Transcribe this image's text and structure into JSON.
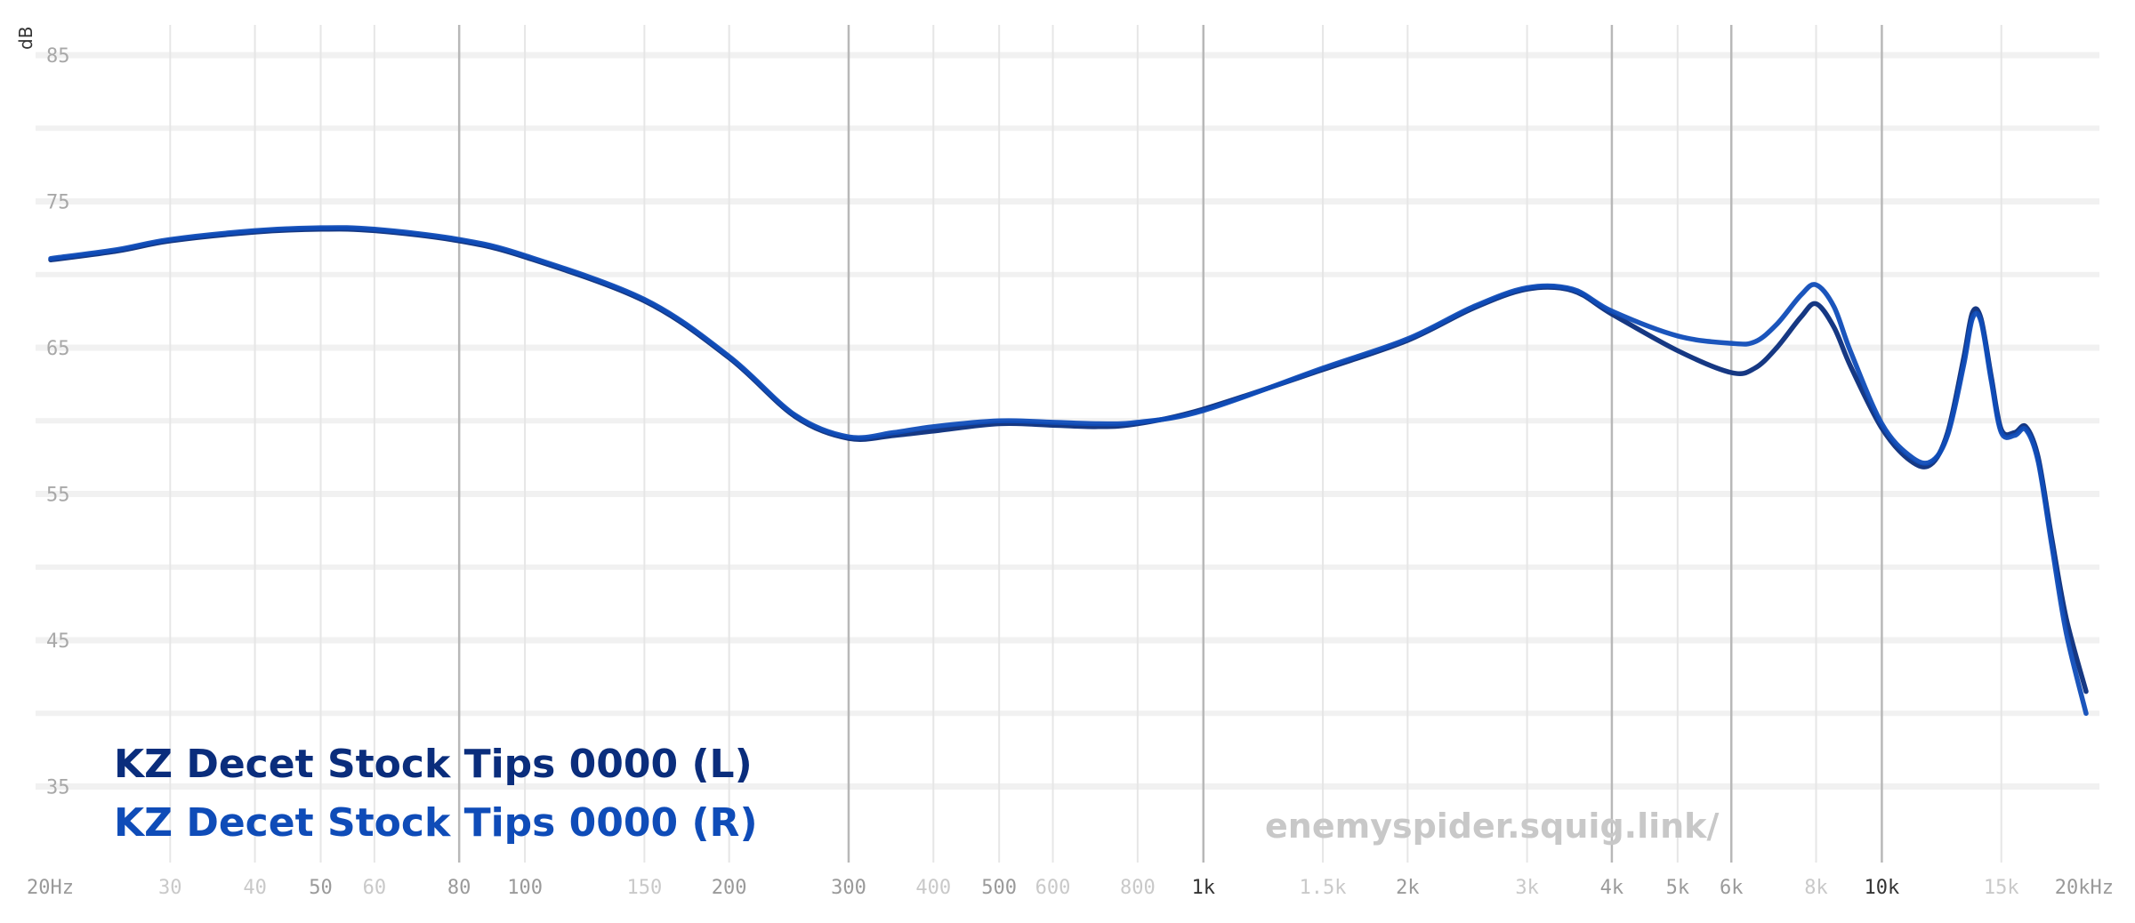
{
  "chart_data": {
    "type": "line",
    "title": "",
    "xlabel": "",
    "ylabel": "dB",
    "xscale": "log",
    "xlim": [
      20,
      20000
    ],
    "ylim": [
      30,
      87
    ],
    "grid": true,
    "legend_position": "bottom-left",
    "y_ticks": [
      {
        "value": 85,
        "label": "85"
      },
      {
        "value": 75,
        "label": "75"
      },
      {
        "value": 65,
        "label": "65"
      },
      {
        "value": 55,
        "label": "55"
      },
      {
        "value": 45,
        "label": "45"
      },
      {
        "value": 35,
        "label": "35"
      }
    ],
    "x_ticks": [
      {
        "value": 20,
        "label": "20Hz",
        "weight": "mid"
      },
      {
        "value": 30,
        "label": "30",
        "weight": "light"
      },
      {
        "value": 40,
        "label": "40",
        "weight": "light"
      },
      {
        "value": 50,
        "label": "50",
        "weight": "mid"
      },
      {
        "value": 60,
        "label": "60",
        "weight": "light"
      },
      {
        "value": 80,
        "label": "80",
        "weight": "mid"
      },
      {
        "value": 100,
        "label": "100",
        "weight": "mid"
      },
      {
        "value": 150,
        "label": "150",
        "weight": "light"
      },
      {
        "value": 200,
        "label": "200",
        "weight": "mid"
      },
      {
        "value": 300,
        "label": "300",
        "weight": "mid"
      },
      {
        "value": 400,
        "label": "400",
        "weight": "light"
      },
      {
        "value": 500,
        "label": "500",
        "weight": "mid"
      },
      {
        "value": 600,
        "label": "600",
        "weight": "light"
      },
      {
        "value": 800,
        "label": "800",
        "weight": "light"
      },
      {
        "value": 1000,
        "label": "1k",
        "weight": "strong"
      },
      {
        "value": 1500,
        "label": "1.5k",
        "weight": "light"
      },
      {
        "value": 2000,
        "label": "2k",
        "weight": "mid"
      },
      {
        "value": 3000,
        "label": "3k",
        "weight": "light"
      },
      {
        "value": 4000,
        "label": "4k",
        "weight": "mid"
      },
      {
        "value": 5000,
        "label": "5k",
        "weight": "mid"
      },
      {
        "value": 6000,
        "label": "6k",
        "weight": "mid"
      },
      {
        "value": 8000,
        "label": "8k",
        "weight": "light"
      },
      {
        "value": 10000,
        "label": "10k",
        "weight": "strong"
      },
      {
        "value": 15000,
        "label": "15k",
        "weight": "light"
      },
      {
        "value": 20000,
        "label": "20kHz",
        "weight": "mid"
      }
    ],
    "dark_gridlines": [
      80,
      300,
      1000,
      4000,
      6000,
      10000
    ],
    "series": [
      {
        "name": "KZ Decet Stock Tips 0000 (L)",
        "color": "#0a2d7c",
        "points": [
          [
            20,
            71
          ],
          [
            25,
            71.6
          ],
          [
            30,
            72.3
          ],
          [
            40,
            72.9
          ],
          [
            50,
            73.1
          ],
          [
            60,
            73.0
          ],
          [
            80,
            72.3
          ],
          [
            100,
            71.2
          ],
          [
            150,
            68.2
          ],
          [
            200,
            64.3
          ],
          [
            250,
            60.3
          ],
          [
            300,
            58.8
          ],
          [
            350,
            59.0
          ],
          [
            400,
            59.3
          ],
          [
            500,
            59.8
          ],
          [
            600,
            59.7
          ],
          [
            700,
            59.6
          ],
          [
            800,
            59.8
          ],
          [
            1000,
            60.8
          ],
          [
            1500,
            63.5
          ],
          [
            2000,
            65.5
          ],
          [
            2500,
            67.7
          ],
          [
            3000,
            69.0
          ],
          [
            3500,
            68.9
          ],
          [
            4000,
            67.3
          ],
          [
            5000,
            64.8
          ],
          [
            6000,
            63.3
          ],
          [
            6500,
            63.6
          ],
          [
            7000,
            65.0
          ],
          [
            7600,
            67.1
          ],
          [
            8000,
            68.0
          ],
          [
            8500,
            66.4
          ],
          [
            9000,
            63.7
          ],
          [
            10000,
            59.5
          ],
          [
            11000,
            57.3
          ],
          [
            11800,
            57.0
          ],
          [
            12500,
            59.2
          ],
          [
            13200,
            64.3
          ],
          [
            13600,
            67.4
          ],
          [
            14000,
            67.0
          ],
          [
            14500,
            63.0
          ],
          [
            15000,
            59.4
          ],
          [
            15700,
            59.2
          ],
          [
            16300,
            59.6
          ],
          [
            17000,
            57.5
          ],
          [
            17800,
            52.0
          ],
          [
            18700,
            46.5
          ],
          [
            20000,
            41.5
          ]
        ]
      },
      {
        "name": "KZ Decet Stock Tips 0000 (R)",
        "color": "#0f4cb8",
        "points": [
          [
            20,
            71.1
          ],
          [
            25,
            71.7
          ],
          [
            30,
            72.4
          ],
          [
            40,
            73.0
          ],
          [
            50,
            73.2
          ],
          [
            60,
            73.1
          ],
          [
            80,
            72.4
          ],
          [
            100,
            71.3
          ],
          [
            150,
            68.3
          ],
          [
            200,
            64.4
          ],
          [
            250,
            60.4
          ],
          [
            300,
            58.9
          ],
          [
            350,
            59.2
          ],
          [
            400,
            59.6
          ],
          [
            500,
            60.0
          ],
          [
            600,
            59.9
          ],
          [
            700,
            59.8
          ],
          [
            800,
            59.9
          ],
          [
            1000,
            60.7
          ],
          [
            1500,
            63.6
          ],
          [
            2000,
            65.6
          ],
          [
            2500,
            67.8
          ],
          [
            3000,
            69.1
          ],
          [
            3500,
            69.0
          ],
          [
            4000,
            67.5
          ],
          [
            5000,
            65.8
          ],
          [
            6000,
            65.3
          ],
          [
            6500,
            65.4
          ],
          [
            7000,
            66.6
          ],
          [
            7600,
            68.6
          ],
          [
            8000,
            69.3
          ],
          [
            8500,
            67.8
          ],
          [
            9000,
            64.7
          ],
          [
            10000,
            59.8
          ],
          [
            11000,
            57.6
          ],
          [
            11800,
            57.2
          ],
          [
            12500,
            59.0
          ],
          [
            13200,
            63.8
          ],
          [
            13600,
            67.0
          ],
          [
            14000,
            66.8
          ],
          [
            14500,
            62.7
          ],
          [
            15000,
            59.2
          ],
          [
            15700,
            59.0
          ],
          [
            16300,
            59.4
          ],
          [
            17000,
            57.2
          ],
          [
            17800,
            51.5
          ],
          [
            18700,
            45.5
          ],
          [
            20000,
            40.0
          ]
        ]
      }
    ],
    "watermark": "enemyspider.squig.link/"
  }
}
